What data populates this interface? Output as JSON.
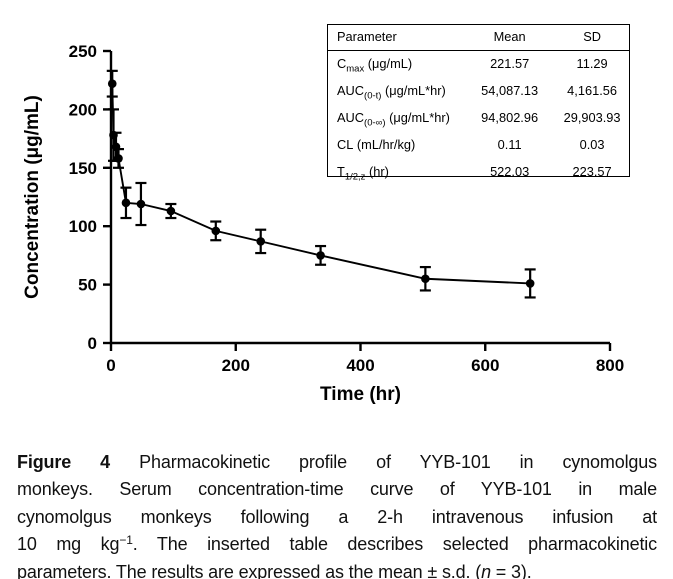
{
  "chart_data": {
    "type": "line",
    "title": "",
    "xlabel": "Time (hr)",
    "ylabel": "Concentration (μg/mL)",
    "xlim": [
      0,
      800
    ],
    "ylim": [
      0,
      250
    ],
    "x_ticks": [
      0,
      200,
      400,
      600,
      800
    ],
    "y_ticks": [
      0,
      50,
      100,
      150,
      200,
      250
    ],
    "grid": false,
    "legend_position": "none",
    "marker": "filled-circle",
    "error_bars": "sd",
    "color": "#000000",
    "series": [
      {
        "name": "YYB-101 serum concentration (mean ± s.d., n = 3)",
        "x": [
          2,
          4,
          8,
          12,
          24,
          48,
          96,
          168,
          240,
          336,
          504,
          672
        ],
        "y": [
          222,
          178,
          168,
          158,
          120,
          119,
          113,
          96,
          87,
          75,
          55,
          51
        ],
        "sd": [
          11,
          22,
          12,
          8,
          13,
          18,
          6,
          8,
          10,
          8,
          10,
          12
        ]
      }
    ]
  },
  "inset_table": {
    "headers": [
      "Parameter",
      "Mean",
      "SD"
    ],
    "rows": [
      {
        "param_main": "C",
        "param_sub": "max",
        "param_rest": " (μg/mL)",
        "mean": "221.57",
        "sd": "11.29"
      },
      {
        "param_main": "AUC",
        "param_sub": "(0-t)",
        "param_rest": " (μg/mL*hr)",
        "mean": "54,087.13",
        "sd": "4,161.56"
      },
      {
        "param_main": "AUC",
        "param_sub": "(0-∞)",
        "param_rest": " (μg/mL*hr)",
        "mean": "94,802.96",
        "sd": "29,903.93"
      },
      {
        "param_main": "CL",
        "param_sub": "",
        "param_rest": " (mL/hr/kg)",
        "mean": "0.11",
        "sd": "0.03"
      },
      {
        "param_main": "T",
        "param_sub": "1/2,z",
        "param_rest": " (hr)",
        "mean": "522.03",
        "sd": "223.57"
      }
    ]
  },
  "caption": {
    "lines": [
      {
        "bold": "Figure 4",
        "text": " Pharmacokinetic profile of YYB-101 in cynomolgus"
      },
      {
        "text": "monkeys. Serum concentration-time curve of YYB-101 in male"
      },
      {
        "text": "cynomolgus monkeys following a 2-h intravenous infusion at"
      },
      {
        "pre": "10 mg kg",
        "sup": "−1",
        "post": ". The inserted table describes selected pharmacokinetic"
      },
      {
        "pre": "parameters. The results are expressed as the mean ± s.d. (",
        "italic": "n",
        "post": " = 3)."
      }
    ]
  }
}
